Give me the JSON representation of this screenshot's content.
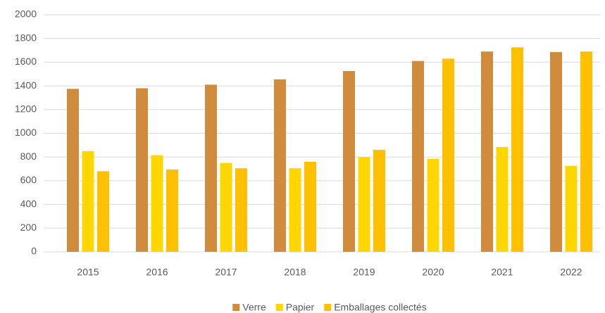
{
  "chart_data": {
    "type": "bar",
    "categories": [
      "2015",
      "2016",
      "2017",
      "2018",
      "2019",
      "2020",
      "2021",
      "2022"
    ],
    "series": [
      {
        "name": "Verre",
        "color": "#d08b3c",
        "values": [
          1375,
          1380,
          1410,
          1455,
          1525,
          1610,
          1690,
          1685
        ]
      },
      {
        "name": "Papier",
        "color": "#ffd700",
        "values": [
          850,
          815,
          750,
          705,
          800,
          785,
          885,
          725
        ]
      },
      {
        "name": "Emballages collectés",
        "color": "#ffc000",
        "values": [
          680,
          695,
          705,
          760,
          860,
          1630,
          1725,
          1690
        ]
      }
    ],
    "ylim": [
      0,
      2000
    ],
    "yticks": [
      0,
      200,
      400,
      600,
      800,
      1000,
      1200,
      1400,
      1600,
      1800,
      2000
    ],
    "grid": true,
    "legend": "bottom"
  }
}
